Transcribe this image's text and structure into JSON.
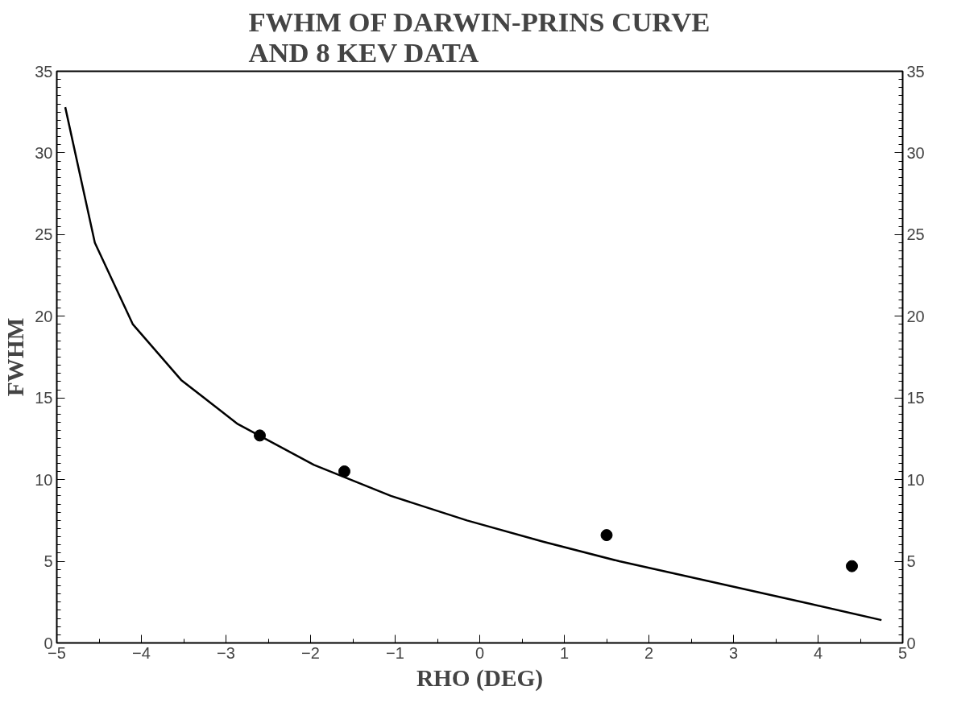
{
  "chart_data": {
    "type": "line",
    "title": "FWHM OF DARWIN-PRINS CURVE\nAND 8 KEV DATA",
    "xlabel": "RHO (DEG)",
    "ylabel": "FWHM",
    "xlim": [
      -5,
      5
    ],
    "xticks": [
      -5,
      -4,
      -3,
      -2,
      -1,
      0,
      1,
      2,
      3,
      4,
      5
    ],
    "ylim": [
      0,
      35
    ],
    "yticks": [
      0,
      5,
      10,
      15,
      20,
      25,
      30,
      35
    ],
    "y2lim": [
      0,
      35
    ],
    "y2ticks": [
      0,
      5,
      10,
      15,
      20,
      25,
      30,
      35
    ],
    "grid": false,
    "series": [
      {
        "color": "#000000",
        "marker": "none",
        "line_style": "solid",
        "x": [
          -4.9,
          -4.55,
          -4.1,
          -3.53,
          -2.86,
          -1.96,
          -1.05,
          -0.15,
          0.75,
          1.65,
          2.78,
          3.9,
          4.75
        ],
        "values": [
          32.8,
          24.5,
          19.5,
          16.1,
          13.4,
          10.9,
          9.0,
          7.5,
          6.2,
          5.0,
          3.7,
          2.4,
          1.4
        ]
      },
      {
        "type": "scatter",
        "color": "#000000",
        "marker": "circle",
        "x": [
          -2.6,
          -1.6,
          1.5,
          4.4
        ],
        "values": [
          12.7,
          10.5,
          6.6,
          4.7
        ]
      }
    ]
  }
}
